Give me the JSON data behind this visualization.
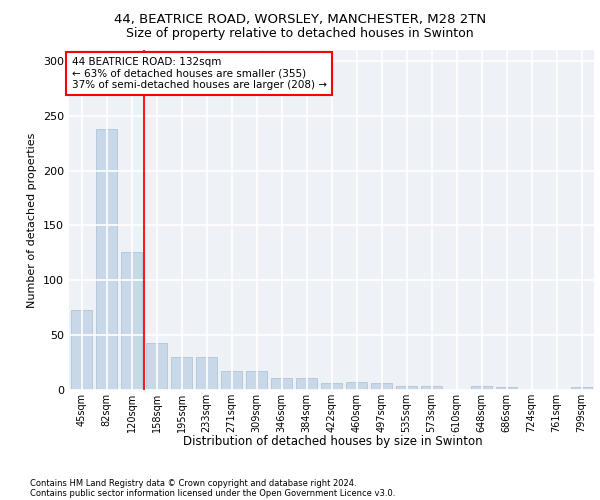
{
  "title1": "44, BEATRICE ROAD, WORSLEY, MANCHESTER, M28 2TN",
  "title2": "Size of property relative to detached houses in Swinton",
  "xlabel": "Distribution of detached houses by size in Swinton",
  "ylabel": "Number of detached properties",
  "footer1": "Contains HM Land Registry data © Crown copyright and database right 2024.",
  "footer2": "Contains public sector information licensed under the Open Government Licence v3.0.",
  "categories": [
    "45sqm",
    "82sqm",
    "120sqm",
    "158sqm",
    "195sqm",
    "233sqm",
    "271sqm",
    "309sqm",
    "346sqm",
    "384sqm",
    "422sqm",
    "460sqm",
    "497sqm",
    "535sqm",
    "573sqm",
    "610sqm",
    "648sqm",
    "686sqm",
    "724sqm",
    "761sqm",
    "799sqm"
  ],
  "values": [
    73,
    238,
    126,
    43,
    30,
    30,
    17,
    17,
    11,
    11,
    6,
    7,
    6,
    4,
    4,
    0,
    4,
    3,
    0,
    0,
    3
  ],
  "bar_color": "#c8d8e8",
  "bar_edge_color": "#a8c0d0",
  "vline_x": 2.5,
  "vline_color": "red",
  "annotation_text_line1": "44 BEATRICE ROAD: 132sqm",
  "annotation_text_line2": "← 63% of detached houses are smaller (355)",
  "annotation_text_line3": "37% of semi-detached houses are larger (208) →",
  "annotation_box_color": "red",
  "background_color": "#eef2f7",
  "grid_color": "white",
  "ylim": [
    0,
    310
  ],
  "title_fontsize": 9.5,
  "subtitle_fontsize": 9,
  "axis_label_fontsize": 8,
  "tick_fontsize": 7,
  "footer_fontsize": 6,
  "bar_width": 0.85
}
